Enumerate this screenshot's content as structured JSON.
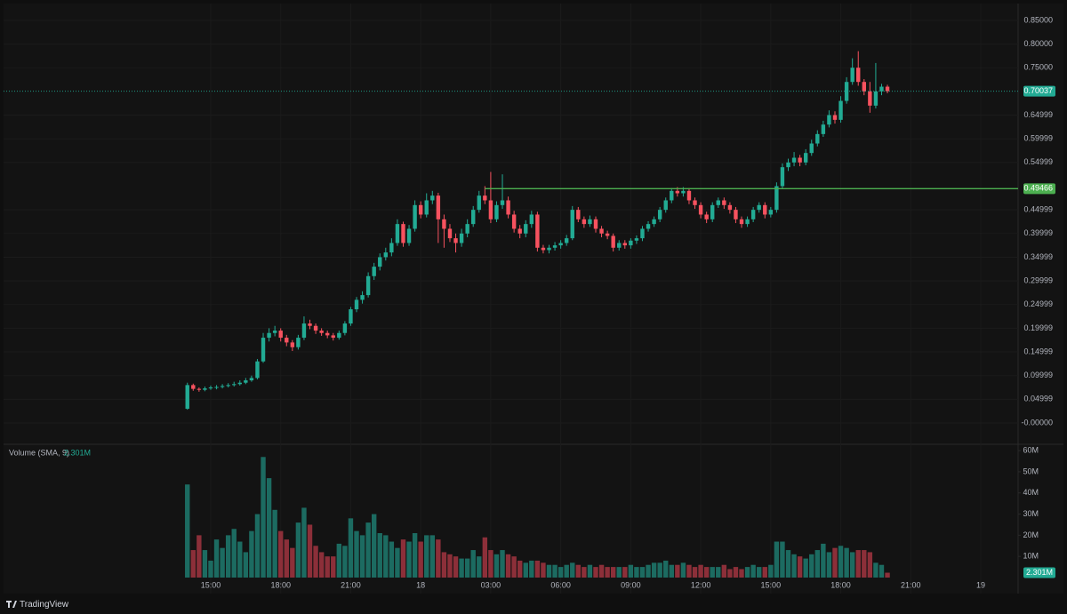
{
  "chart_data": {
    "type": "candlestick",
    "colors": {
      "up": "#22ab94",
      "down": "#f7525f",
      "volume_up": "#1c6b61",
      "volume_down": "#8c2f39",
      "background": "#131313"
    },
    "grid": true,
    "xlim": [
      5.97,
      49.6
    ],
    "xticks": [
      {
        "value": 15,
        "label": "15:00"
      },
      {
        "value": 18,
        "label": "18:00"
      },
      {
        "value": 21,
        "label": "21:00"
      },
      {
        "value": 24,
        "label": "18"
      },
      {
        "value": 27,
        "label": "03:00"
      },
      {
        "value": 30,
        "label": "06:00"
      },
      {
        "value": 33,
        "label": "09:00"
      },
      {
        "value": 36,
        "label": "12:00"
      },
      {
        "value": 39,
        "label": "15:00"
      },
      {
        "value": 42,
        "label": "18:00"
      },
      {
        "value": 45,
        "label": "21:00"
      },
      {
        "value": 48,
        "label": "19"
      }
    ],
    "ylim": [
      -0.045,
      0.893
    ],
    "yticks": [
      {
        "value": 0.85,
        "label": "0.85000"
      },
      {
        "value": 0.8,
        "label": "0.80000"
      },
      {
        "value": 0.75,
        "label": "0.75000"
      },
      {
        "value": 0.64999,
        "label": "0.64999"
      },
      {
        "value": 0.59999,
        "label": "0.59999"
      },
      {
        "value": 0.54999,
        "label": "0.54999"
      },
      {
        "value": 0.44999,
        "label": "0.44999"
      },
      {
        "value": 0.39999,
        "label": "0.39999"
      },
      {
        "value": 0.34999,
        "label": "0.34999"
      },
      {
        "value": 0.29999,
        "label": "0.29999"
      },
      {
        "value": 0.24999,
        "label": "0.24999"
      },
      {
        "value": 0.19999,
        "label": "0.19999"
      },
      {
        "value": 0.14999,
        "label": "0.14999"
      },
      {
        "value": 0.09999,
        "label": "0.09999"
      },
      {
        "value": 0.04999,
        "label": "0.04999"
      },
      {
        "value": 0,
        "label": "-0.00000"
      }
    ],
    "hline": {
      "value": 0.49466,
      "from_x": 26.75,
      "color": "#4caf50"
    },
    "x": [
      14,
      14.25,
      14.5,
      14.75,
      15,
      15.25,
      15.5,
      15.75,
      16,
      16.25,
      16.5,
      16.75,
      17,
      17.25,
      17.5,
      17.75,
      18,
      18.25,
      18.5,
      18.75,
      19,
      19.25,
      19.5,
      19.75,
      20,
      20.25,
      20.5,
      20.75,
      21,
      21.25,
      21.5,
      21.75,
      22,
      22.25,
      22.5,
      22.75,
      23,
      23.25,
      23.5,
      23.75,
      24,
      24.25,
      24.5,
      24.75,
      25,
      25.25,
      25.5,
      25.75,
      26,
      26.25,
      26.5,
      26.75,
      27,
      27.25,
      27.5,
      27.75,
      28,
      28.25,
      28.5,
      28.75,
      29,
      29.25,
      29.5,
      29.75,
      30,
      30.25,
      30.5,
      30.75,
      31,
      31.25,
      31.5,
      31.75,
      32,
      32.25,
      32.5,
      32.75,
      33,
      33.25,
      33.5,
      33.75,
      34,
      34.25,
      34.5,
      34.75,
      35,
      35.25,
      35.5,
      35.75,
      36,
      36.25,
      36.5,
      36.75,
      37,
      37.25,
      37.5,
      37.75,
      38,
      38.25,
      38.5,
      38.75,
      39,
      39.25,
      39.5,
      39.75,
      40,
      40.25,
      40.5,
      40.75,
      41,
      41.25,
      41.5,
      41.75,
      42,
      42.25,
      42.5,
      42.75,
      43,
      43.25,
      43.5,
      43.75,
      44
    ],
    "open": [
      0.03,
      0.08,
      0.072,
      0.07,
      0.073,
      0.075,
      0.076,
      0.078,
      0.08,
      0.082,
      0.085,
      0.09,
      0.095,
      0.13,
      0.18,
      0.19,
      0.195,
      0.18,
      0.17,
      0.16,
      0.18,
      0.21,
      0.205,
      0.195,
      0.19,
      0.185,
      0.18,
      0.19,
      0.21,
      0.24,
      0.26,
      0.27,
      0.31,
      0.33,
      0.35,
      0.36,
      0.38,
      0.42,
      0.38,
      0.41,
      0.46,
      0.44,
      0.47,
      0.48,
      0.43,
      0.41,
      0.39,
      0.38,
      0.4,
      0.42,
      0.45,
      0.48,
      0.47,
      0.43,
      0.46,
      0.47,
      0.44,
      0.41,
      0.4,
      0.42,
      0.44,
      0.37,
      0.365,
      0.37,
      0.375,
      0.38,
      0.39,
      0.45,
      0.43,
      0.42,
      0.43,
      0.41,
      0.4,
      0.395,
      0.37,
      0.38,
      0.375,
      0.385,
      0.39,
      0.41,
      0.42,
      0.43,
      0.45,
      0.47,
      0.49,
      0.485,
      0.49,
      0.47,
      0.46,
      0.44,
      0.43,
      0.46,
      0.47,
      0.46,
      0.45,
      0.43,
      0.42,
      0.43,
      0.45,
      0.46,
      0.44,
      0.45,
      0.5,
      0.54,
      0.55,
      0.56,
      0.55,
      0.57,
      0.59,
      0.61,
      0.63,
      0.65,
      0.64,
      0.68,
      0.72,
      0.75,
      0.72,
      0.7,
      0.67,
      0.7,
      0.71
    ],
    "high": [
      0.085,
      0.083,
      0.075,
      0.077,
      0.079,
      0.08,
      0.082,
      0.084,
      0.087,
      0.09,
      0.095,
      0.1,
      0.135,
      0.19,
      0.2,
      0.205,
      0.2,
      0.186,
      0.175,
      0.186,
      0.225,
      0.218,
      0.21,
      0.2,
      0.195,
      0.19,
      0.195,
      0.215,
      0.245,
      0.266,
      0.278,
      0.318,
      0.338,
      0.358,
      0.37,
      0.39,
      0.43,
      0.425,
      0.418,
      0.47,
      0.468,
      0.485,
      0.49,
      0.486,
      0.44,
      0.42,
      0.4,
      0.41,
      0.43,
      0.458,
      0.49,
      0.5,
      0.53,
      0.468,
      0.525,
      0.478,
      0.448,
      0.418,
      0.428,
      0.448,
      0.446,
      0.376,
      0.376,
      0.382,
      0.386,
      0.397,
      0.458,
      0.456,
      0.436,
      0.438,
      0.436,
      0.416,
      0.406,
      0.4,
      0.386,
      0.386,
      0.39,
      0.396,
      0.416,
      0.426,
      0.436,
      0.456,
      0.476,
      0.496,
      0.498,
      0.498,
      0.496,
      0.476,
      0.466,
      0.446,
      0.466,
      0.476,
      0.476,
      0.466,
      0.456,
      0.436,
      0.436,
      0.456,
      0.466,
      0.466,
      0.456,
      0.508,
      0.548,
      0.558,
      0.572,
      0.566,
      0.578,
      0.598,
      0.618,
      0.638,
      0.66,
      0.658,
      0.69,
      0.73,
      0.77,
      0.785,
      0.726,
      0.72,
      0.76,
      0.716,
      0.714
    ],
    "low": [
      0.028,
      0.068,
      0.066,
      0.067,
      0.07,
      0.071,
      0.073,
      0.075,
      0.077,
      0.079,
      0.082,
      0.087,
      0.092,
      0.127,
      0.172,
      0.183,
      0.172,
      0.162,
      0.152,
      0.155,
      0.175,
      0.198,
      0.188,
      0.184,
      0.179,
      0.174,
      0.176,
      0.185,
      0.205,
      0.234,
      0.252,
      0.265,
      0.302,
      0.322,
      0.343,
      0.352,
      0.374,
      0.372,
      0.374,
      0.404,
      0.432,
      0.434,
      0.462,
      0.38,
      0.37,
      0.382,
      0.36,
      0.372,
      0.392,
      0.414,
      0.444,
      0.462,
      0.422,
      0.424,
      0.452,
      0.432,
      0.402,
      0.39,
      0.392,
      0.412,
      0.362,
      0.358,
      0.358,
      0.364,
      0.368,
      0.374,
      0.386,
      0.424,
      0.412,
      0.414,
      0.402,
      0.392,
      0.388,
      0.362,
      0.364,
      0.368,
      0.368,
      0.378,
      0.384,
      0.404,
      0.414,
      0.424,
      0.444,
      0.464,
      0.478,
      0.478,
      0.462,
      0.452,
      0.432,
      0.422,
      0.424,
      0.454,
      0.452,
      0.442,
      0.422,
      0.412,
      0.414,
      0.424,
      0.444,
      0.432,
      0.434,
      0.444,
      0.494,
      0.532,
      0.542,
      0.542,
      0.544,
      0.564,
      0.584,
      0.604,
      0.624,
      0.632,
      0.634,
      0.674,
      0.714,
      0.712,
      0.692,
      0.655,
      0.664,
      0.692,
      0.696
    ],
    "close": [
      0.08,
      0.072,
      0.07,
      0.073,
      0.075,
      0.076,
      0.078,
      0.08,
      0.082,
      0.085,
      0.09,
      0.095,
      0.13,
      0.18,
      0.19,
      0.195,
      0.18,
      0.17,
      0.16,
      0.18,
      0.21,
      0.205,
      0.195,
      0.19,
      0.185,
      0.18,
      0.19,
      0.21,
      0.24,
      0.26,
      0.27,
      0.31,
      0.33,
      0.35,
      0.36,
      0.38,
      0.42,
      0.38,
      0.41,
      0.46,
      0.44,
      0.47,
      0.48,
      0.43,
      0.41,
      0.39,
      0.38,
      0.4,
      0.42,
      0.45,
      0.48,
      0.47,
      0.43,
      0.46,
      0.47,
      0.44,
      0.41,
      0.4,
      0.42,
      0.44,
      0.37,
      0.365,
      0.37,
      0.375,
      0.38,
      0.39,
      0.45,
      0.43,
      0.42,
      0.43,
      0.41,
      0.4,
      0.395,
      0.37,
      0.38,
      0.375,
      0.385,
      0.39,
      0.41,
      0.42,
      0.43,
      0.45,
      0.47,
      0.49,
      0.485,
      0.49,
      0.47,
      0.46,
      0.44,
      0.43,
      0.46,
      0.47,
      0.46,
      0.45,
      0.43,
      0.42,
      0.43,
      0.45,
      0.46,
      0.44,
      0.45,
      0.5,
      0.54,
      0.55,
      0.56,
      0.55,
      0.57,
      0.59,
      0.61,
      0.63,
      0.65,
      0.64,
      0.68,
      0.72,
      0.75,
      0.72,
      0.7,
      0.67,
      0.7,
      0.71,
      0.70037
    ],
    "volume": [
      44,
      13,
      20,
      13,
      8,
      18,
      14,
      20,
      23,
      17,
      12,
      22,
      30,
      57,
      47,
      32,
      22,
      18,
      14,
      26,
      33,
      25,
      15,
      12,
      10,
      10,
      16,
      15,
      28,
      22,
      20,
      26,
      30,
      21,
      20,
      17,
      14,
      18,
      17,
      21,
      17,
      20,
      20,
      18,
      12,
      11,
      10,
      9,
      9,
      13,
      10,
      19,
      13,
      11,
      13,
      11,
      10,
      8,
      7,
      8,
      8,
      7,
      6,
      6,
      5,
      6,
      7,
      6,
      5,
      6,
      5,
      6,
      5,
      5,
      5,
      5,
      6,
      5,
      5,
      6,
      7,
      7,
      8,
      6,
      6,
      7,
      6,
      5,
      6,
      5,
      5,
      5,
      6,
      4,
      5,
      4,
      5,
      6,
      5,
      5,
      6,
      17,
      17,
      13,
      11,
      10,
      9,
      11,
      13,
      16,
      12,
      14,
      15,
      14,
      12,
      13,
      13,
      12,
      7,
      6,
      2.3
    ],
    "volume_lim": [
      -7.56,
      63
    ],
    "volume_ticks": [
      {
        "value": 60,
        "label": "60M"
      },
      {
        "value": 50,
        "label": "50M"
      },
      {
        "value": 40,
        "label": "40M"
      },
      {
        "value": 30,
        "label": "30M"
      },
      {
        "value": 20,
        "label": "20M"
      },
      {
        "value": 10,
        "label": "10M"
      }
    ],
    "volume_indicator": {
      "title": "Volume (SMA, 9)",
      "value": 2.301,
      "label": "2.301M"
    }
  },
  "footer": {
    "brand": "TradingView"
  }
}
